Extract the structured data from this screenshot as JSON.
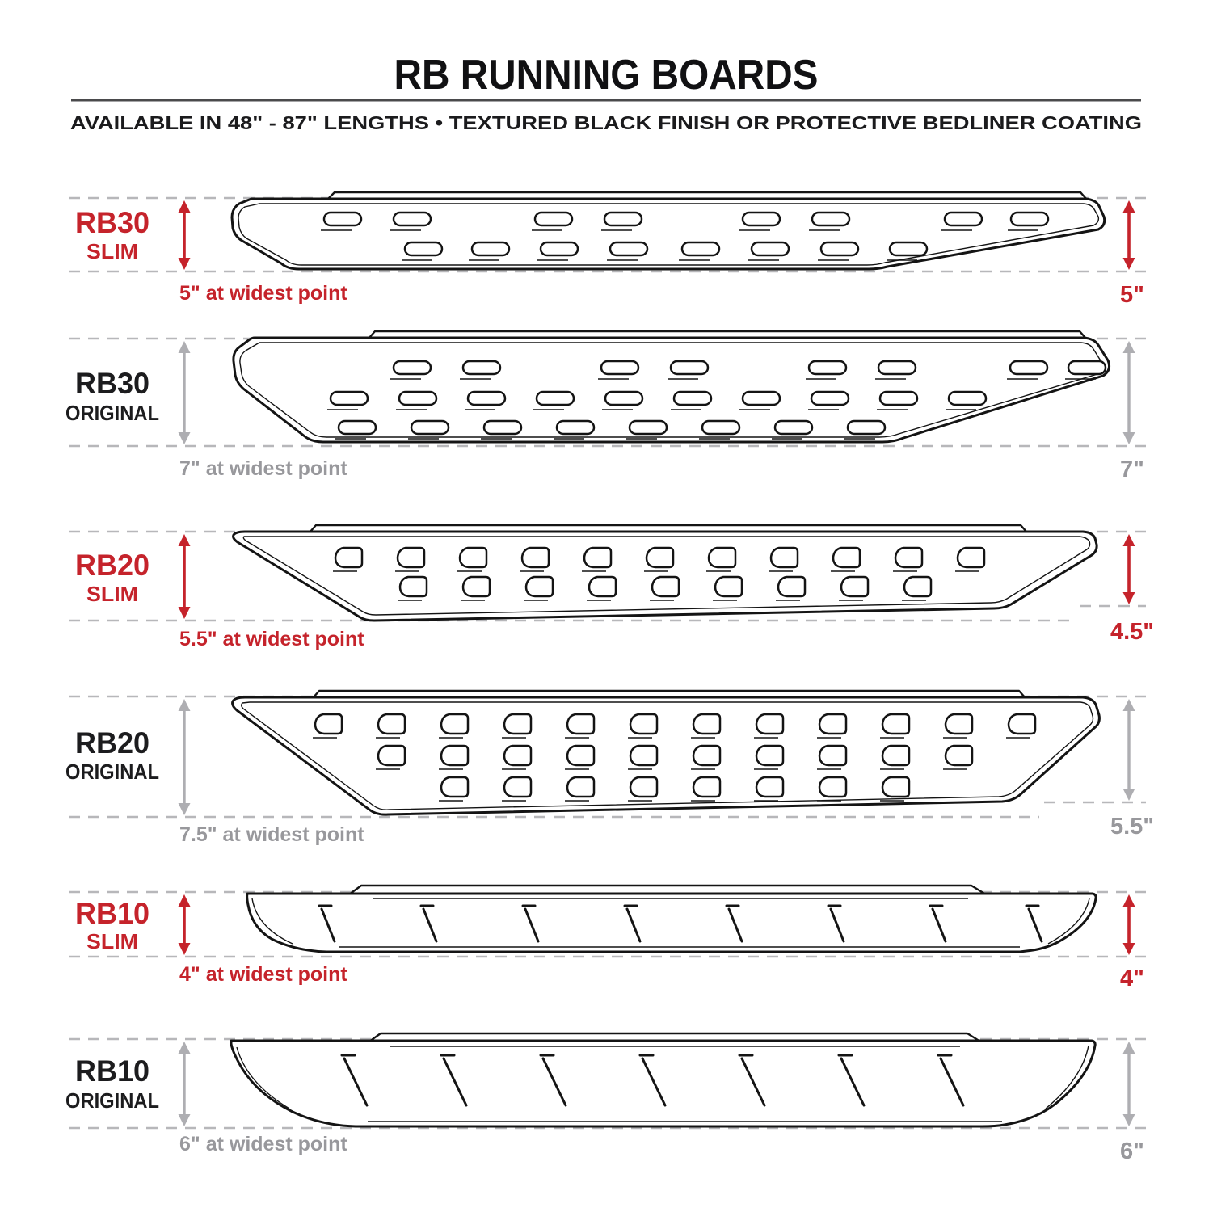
{
  "header": {
    "title": "RB RUNNING BOARDS",
    "subtitle": "AVAILABLE IN 48\" - 87\" LENGTHS  •  TEXTURED BLACK FINISH OR PROTECTIVE BEDLINER COATING"
  },
  "colors": {
    "accent_red": "#c5232b",
    "muted_gray": "#98989c",
    "arrow_gray": "#aeaeb2",
    "outline_black": "#141414",
    "dash_gray": "#b7b7ba"
  },
  "rows": [
    {
      "model": "RB30",
      "variant": "SLIM",
      "width_note": "5\" at widest point",
      "right_width": "5\"",
      "accent": true,
      "tread_pattern": "oval slots, 2 rows"
    },
    {
      "model": "RB30",
      "variant": "ORIGINAL",
      "width_note": "7\" at widest point",
      "right_width": "7\"",
      "accent": false,
      "tread_pattern": "oval slots, 3 rows"
    },
    {
      "model": "RB20",
      "variant": "SLIM",
      "width_note": "5.5\" at widest point",
      "right_width": "4.5\"",
      "accent": true,
      "tread_pattern": "D-shaped slots, 2 rows"
    },
    {
      "model": "RB20",
      "variant": "ORIGINAL",
      "width_note": "7.5\" at widest point",
      "right_width": "5.5\"",
      "accent": false,
      "tread_pattern": "D-shaped slots, 3 rows"
    },
    {
      "model": "RB10",
      "variant": "SLIM",
      "width_note": "4\" at widest point",
      "right_width": "4\"",
      "accent": true,
      "tread_pattern": "diagonal hash marks, 8"
    },
    {
      "model": "RB10",
      "variant": "ORIGINAL",
      "width_note": "6\" at widest point",
      "right_width": "6\"",
      "accent": false,
      "tread_pattern": "diagonal hash marks, 7"
    }
  ]
}
